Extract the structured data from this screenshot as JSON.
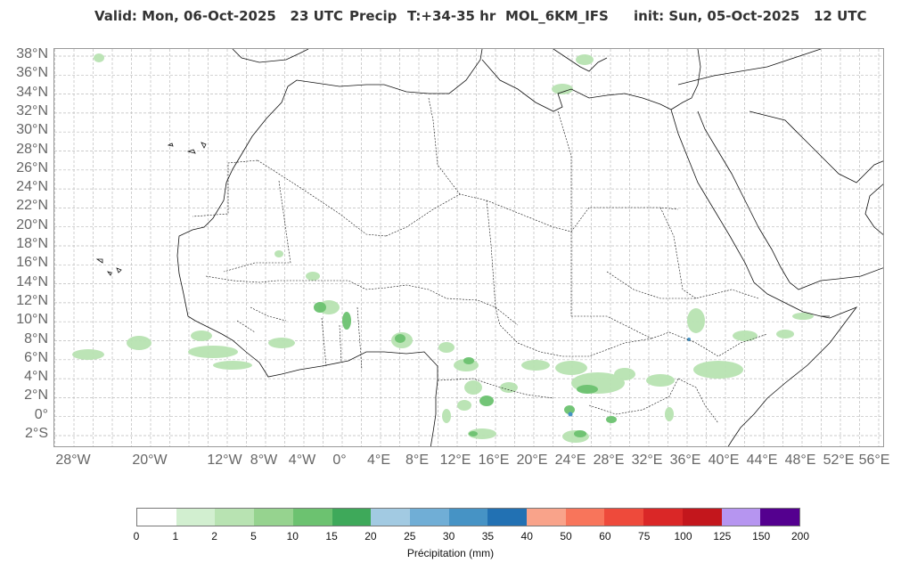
{
  "title": {
    "valid": "Valid: Mon, 06-Oct-2025   23 UTC",
    "field": "Precip",
    "lead": "T:+34-35 hr",
    "model": "MOL_6KM_IFS",
    "init": "init: Sun, 05-Oct-2025   12 UTC"
  },
  "lat_labels": [
    "38°N",
    "36°N",
    "34°N",
    "32°N",
    "30°N",
    "28°N",
    "26°N",
    "24°N",
    "22°N",
    "20°N",
    "18°N",
    "16°N",
    "14°N",
    "12°N",
    "10°N",
    "8°N",
    "6°N",
    "4°N",
    "2°N",
    "0°",
    "2°S"
  ],
  "lon_labels": [
    "28°W",
    "20°W",
    "12°W",
    "8°W",
    "4°W",
    "0°",
    "4°E",
    "8°E",
    "12°E",
    "16°E",
    "20°E",
    "24°E",
    "28°E",
    "32°E",
    "36°E",
    "40°E",
    "44°E",
    "48°E",
    "52°E",
    "56°E"
  ],
  "colorbar": {
    "ticks": [
      "0",
      "1",
      "2",
      "5",
      "10",
      "15",
      "20",
      "25",
      "30",
      "35",
      "40",
      "50",
      "60",
      "75",
      "100",
      "125",
      "150",
      "200"
    ],
    "colors": [
      "#ffffff",
      "#d2efd0",
      "#b8e3b2",
      "#96d38f",
      "#6cc270",
      "#3ea95a",
      "#a2cae2",
      "#70aed6",
      "#4693c5",
      "#2271b3",
      "#f9a38a",
      "#f8755b",
      "#ee4a3b",
      "#da2727",
      "#c3161c",
      "#b695f0",
      "#54008f"
    ],
    "label": "Précipitation (mm)"
  }
}
